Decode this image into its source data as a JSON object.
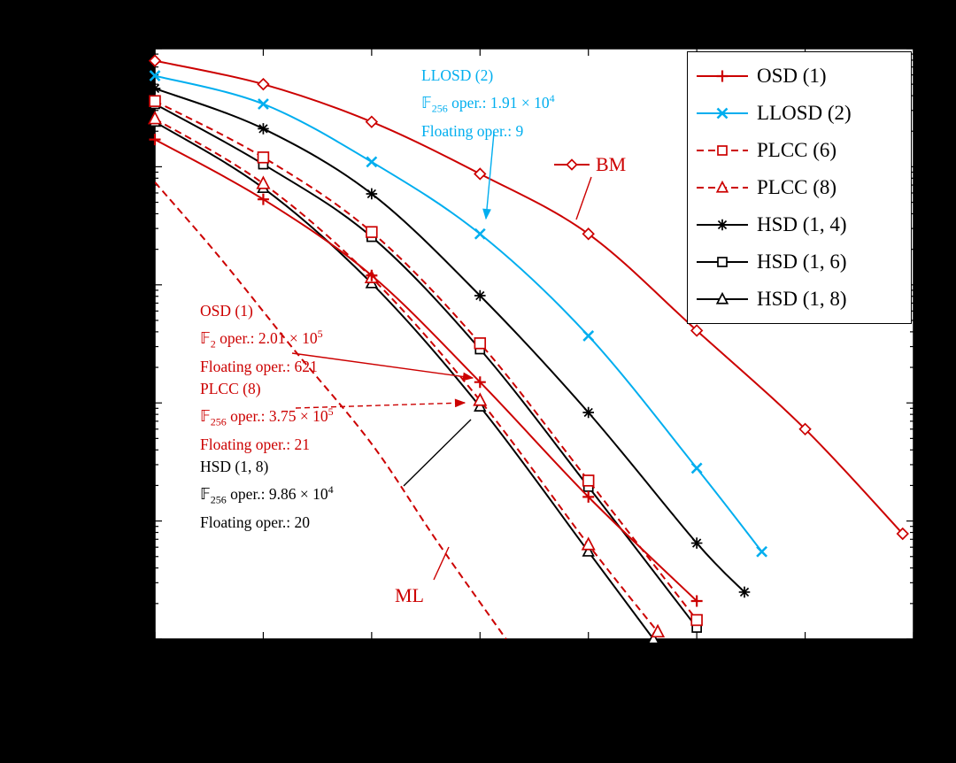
{
  "colors": {
    "red": "#cc0000",
    "cyan": "#00aeef",
    "black": "#000000",
    "plot_bg": "#ffffff",
    "page_bg": "#000000"
  },
  "legend": {
    "entries": [
      {
        "label": "OSD (1)",
        "color": "red",
        "dash": false,
        "marker": "plus"
      },
      {
        "label": "LLOSD (2)",
        "color": "cyan",
        "dash": false,
        "marker": "x"
      },
      {
        "label": "PLCC (6)",
        "color": "red",
        "dash": true,
        "marker": "square"
      },
      {
        "label": "PLCC (8)",
        "color": "red",
        "dash": true,
        "marker": "triangle"
      },
      {
        "label": "HSD (1, 4)",
        "color": "black",
        "dash": false,
        "marker": "asterisk"
      },
      {
        "label": "HSD (1, 6)",
        "color": "black",
        "dash": false,
        "marker": "square"
      },
      {
        "label": "HSD (1, 8)",
        "color": "black",
        "dash": false,
        "marker": "triangle"
      }
    ]
  },
  "annotations": {
    "llosd": {
      "line1": "LLOSD (2)",
      "f": "𝔽",
      "f_sub": "256",
      "ops": " oper.: 1.91 × 10",
      "ops_exp": "4",
      "line3": "Floating oper.: 9"
    },
    "bm": {
      "label": "BM"
    },
    "osd": {
      "line1": "OSD (1)",
      "f": "𝔽",
      "f_sub": "2",
      "ops": " oper.: 2.01 × 10",
      "ops_exp": "5",
      "line3": "Floating oper.: 621"
    },
    "plcc8": {
      "line1": "PLCC (8)",
      "f": "𝔽",
      "f_sub": "256",
      "ops": " oper.: 3.75 × 10",
      "ops_exp": "5",
      "line3": "Floating oper.: 21"
    },
    "hsd8": {
      "line1": "HSD (1, 8)",
      "f": "𝔽",
      "f_sub": "256",
      "ops": " oper.: 9.86 × 10",
      "ops_exp": "4",
      "line3": "Floating oper.: 20"
    },
    "ml": {
      "label": "ML"
    }
  },
  "chart_data": {
    "type": "line",
    "title": "",
    "xlabel": "",
    "ylabel": "",
    "x_axis": {
      "range": [
        1,
        4.5
      ],
      "tick_step": 0.5,
      "scale": "linear"
    },
    "y_axis": {
      "range": [
        1e-05,
        1
      ],
      "scale": "log"
    },
    "legend_position": "top-right",
    "grid": false,
    "series": [
      {
        "name": "ML",
        "color": "red",
        "dash": true,
        "marker": "none",
        "points": [
          [
            1,
            0.074
          ],
          [
            1.3,
            0.017
          ],
          [
            1.63,
            0.003
          ],
          [
            2,
            0.00045
          ],
          [
            2.3,
            6.8e-05
          ],
          [
            2.62,
            1e-05
          ]
        ]
      },
      {
        "name": "BM",
        "color": "red",
        "dash": false,
        "marker": "diamond",
        "points": [
          [
            1,
            0.79
          ],
          [
            1.5,
            0.5
          ],
          [
            2,
            0.24
          ],
          [
            2.5,
            0.087
          ],
          [
            3,
            0.027
          ],
          [
            3.5,
            0.0041
          ],
          [
            4,
            0.0006
          ],
          [
            4.45,
            7.8e-05
          ]
        ]
      },
      {
        "name": "LLOSD (2)",
        "color": "cyan",
        "dash": false,
        "marker": "x",
        "points": [
          [
            1,
            0.59
          ],
          [
            1.5,
            0.34
          ],
          [
            2,
            0.11
          ],
          [
            2.5,
            0.027
          ],
          [
            3,
            0.0037
          ],
          [
            3.5,
            0.00028
          ],
          [
            3.8,
            5.5e-05
          ]
        ]
      },
      {
        "name": "HSD (1, 4)",
        "color": "black",
        "dash": false,
        "marker": "asterisk",
        "points": [
          [
            1,
            0.46
          ],
          [
            1.5,
            0.21
          ],
          [
            2,
            0.059
          ],
          [
            2.5,
            0.0081
          ],
          [
            3,
            0.00083
          ],
          [
            3.5,
            6.5e-05
          ],
          [
            3.72,
            2.5e-05
          ]
        ]
      },
      {
        "name": "HSD (1, 6)",
        "color": "black",
        "dash": false,
        "marker": "square",
        "points": [
          [
            1,
            0.34
          ],
          [
            1.5,
            0.105
          ],
          [
            2,
            0.0255
          ],
          [
            2.5,
            0.00285
          ],
          [
            3,
            0.000195
          ],
          [
            3.5,
            1.25e-05
          ]
        ]
      },
      {
        "name": "PLCC (6)",
        "color": "red",
        "dash": true,
        "marker": "square",
        "size": 5.9,
        "points": [
          [
            1,
            0.36
          ],
          [
            1.5,
            0.12
          ],
          [
            2,
            0.028
          ],
          [
            2.5,
            0.0032
          ],
          [
            3,
            0.00022
          ],
          [
            3.5,
            1.45e-05
          ]
        ]
      },
      {
        "name": "HSD (1, 8)",
        "color": "black",
        "dash": false,
        "marker": "triangle",
        "points": [
          [
            1,
            0.24
          ],
          [
            1.5,
            0.066
          ],
          [
            2,
            0.0103
          ],
          [
            2.5,
            0.00093
          ],
          [
            3,
            5.5e-05
          ],
          [
            3.3,
            1e-05
          ]
        ]
      },
      {
        "name": "PLCC (8)",
        "color": "red",
        "dash": true,
        "marker": "triangle",
        "size": 7.2,
        "points": [
          [
            1,
            0.255
          ],
          [
            1.5,
            0.072
          ],
          [
            2,
            0.0115
          ],
          [
            2.5,
            0.00105
          ],
          [
            3,
            6.3e-05
          ],
          [
            3.32,
            1.15e-05
          ]
        ]
      },
      {
        "name": "OSD (1)",
        "color": "red",
        "dash": false,
        "marker": "plus",
        "points": [
          [
            1,
            0.17
          ],
          [
            1.5,
            0.053
          ],
          [
            2,
            0.012
          ],
          [
            2.5,
            0.0015
          ],
          [
            3,
            0.00016
          ],
          [
            3.5,
            2.1e-05
          ]
        ]
      }
    ]
  }
}
